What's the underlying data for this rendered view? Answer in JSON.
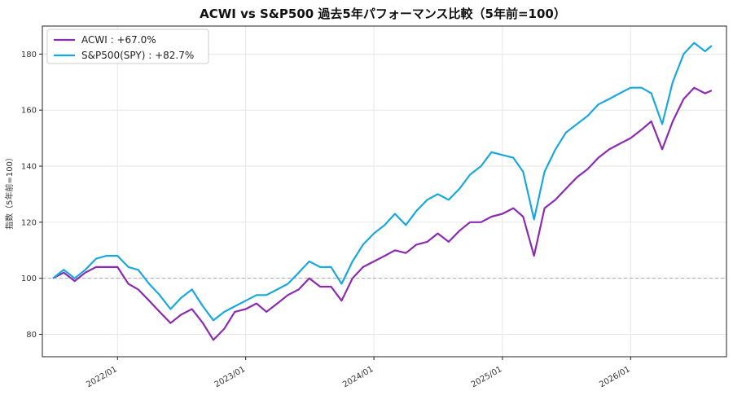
{
  "chart_data": {
    "type": "line",
    "title": "ACWI vs S&P500 過去5年パフォーマンス比較（5年前=100）",
    "ylabel": "指数（5年前=100）",
    "xlabel": "",
    "ylim": [
      72,
      190
    ],
    "xlim": [
      "2021-06-01",
      "2026-10-01"
    ],
    "yticks": [
      80,
      100,
      120,
      140,
      160,
      180
    ],
    "xticks": [
      "2022/01",
      "2023/01",
      "2024/01",
      "2025/01",
      "2026/01"
    ],
    "baseline": 100,
    "grid": true,
    "legend_position": "top-left",
    "series": [
      {
        "name": "ACWI : +67.0%",
        "color": "#8b2bb0",
        "points": [
          [
            "2021-07-01",
            100
          ],
          [
            "2021-08-01",
            102
          ],
          [
            "2021-09-01",
            99
          ],
          [
            "2021-10-01",
            102
          ],
          [
            "2021-11-01",
            104
          ],
          [
            "2021-12-01",
            104
          ],
          [
            "2022-01-01",
            104
          ],
          [
            "2022-02-01",
            98
          ],
          [
            "2022-03-01",
            96
          ],
          [
            "2022-04-01",
            92
          ],
          [
            "2022-05-01",
            88
          ],
          [
            "2022-06-01",
            84
          ],
          [
            "2022-07-01",
            87
          ],
          [
            "2022-08-01",
            89
          ],
          [
            "2022-09-01",
            84
          ],
          [
            "2022-10-01",
            78
          ],
          [
            "2022-11-01",
            82
          ],
          [
            "2022-12-01",
            88
          ],
          [
            "2023-01-01",
            89
          ],
          [
            "2023-02-01",
            91
          ],
          [
            "2023-03-01",
            88
          ],
          [
            "2023-04-01",
            91
          ],
          [
            "2023-05-01",
            94
          ],
          [
            "2023-06-01",
            96
          ],
          [
            "2023-07-01",
            100
          ],
          [
            "2023-08-01",
            97
          ],
          [
            "2023-09-01",
            97
          ],
          [
            "2023-10-01",
            92
          ],
          [
            "2023-11-01",
            100
          ],
          [
            "2023-12-01",
            104
          ],
          [
            "2024-01-01",
            106
          ],
          [
            "2024-02-01",
            108
          ],
          [
            "2024-03-01",
            110
          ],
          [
            "2024-04-01",
            109
          ],
          [
            "2024-05-01",
            112
          ],
          [
            "2024-06-01",
            113
          ],
          [
            "2024-07-01",
            116
          ],
          [
            "2024-08-01",
            113
          ],
          [
            "2024-09-01",
            117
          ],
          [
            "2024-10-01",
            120
          ],
          [
            "2024-11-01",
            120
          ],
          [
            "2024-12-01",
            122
          ],
          [
            "2025-01-01",
            123
          ],
          [
            "2025-02-01",
            125
          ],
          [
            "2025-03-01",
            122
          ],
          [
            "2025-04-01",
            108
          ],
          [
            "2025-05-01",
            125
          ],
          [
            "2025-06-01",
            128
          ],
          [
            "2025-07-01",
            132
          ],
          [
            "2025-08-01",
            136
          ],
          [
            "2025-09-01",
            139
          ],
          [
            "2025-10-01",
            143
          ],
          [
            "2025-11-01",
            146
          ],
          [
            "2025-12-01",
            148
          ],
          [
            "2026-01-01",
            150
          ],
          [
            "2026-02-01",
            153
          ],
          [
            "2026-03-01",
            156
          ],
          [
            "2026-04-01",
            146
          ],
          [
            "2026-05-01",
            156
          ],
          [
            "2026-06-01",
            164
          ],
          [
            "2026-07-01",
            168
          ],
          [
            "2026-08-01",
            166
          ],
          [
            "2026-08-20",
            167
          ]
        ]
      },
      {
        "name": "S&P500(SPY) : +82.7%",
        "color": "#1aa7e0",
        "points": [
          [
            "2021-07-01",
            100
          ],
          [
            "2021-08-01",
            103
          ],
          [
            "2021-09-01",
            100
          ],
          [
            "2021-10-01",
            103
          ],
          [
            "2021-11-01",
            107
          ],
          [
            "2021-12-01",
            108
          ],
          [
            "2022-01-01",
            108
          ],
          [
            "2022-02-01",
            104
          ],
          [
            "2022-03-01",
            103
          ],
          [
            "2022-04-01",
            98
          ],
          [
            "2022-05-01",
            94
          ],
          [
            "2022-06-01",
            89
          ],
          [
            "2022-07-01",
            93
          ],
          [
            "2022-08-01",
            96
          ],
          [
            "2022-09-01",
            90
          ],
          [
            "2022-10-01",
            85
          ],
          [
            "2022-11-01",
            88
          ],
          [
            "2022-12-01",
            90
          ],
          [
            "2023-01-01",
            92
          ],
          [
            "2023-02-01",
            94
          ],
          [
            "2023-03-01",
            94
          ],
          [
            "2023-04-01",
            96
          ],
          [
            "2023-05-01",
            98
          ],
          [
            "2023-06-01",
            102
          ],
          [
            "2023-07-01",
            106
          ],
          [
            "2023-08-01",
            104
          ],
          [
            "2023-09-01",
            104
          ],
          [
            "2023-10-01",
            98
          ],
          [
            "2023-11-01",
            106
          ],
          [
            "2023-12-01",
            112
          ],
          [
            "2024-01-01",
            116
          ],
          [
            "2024-02-01",
            119
          ],
          [
            "2024-03-01",
            123
          ],
          [
            "2024-04-01",
            119
          ],
          [
            "2024-05-01",
            124
          ],
          [
            "2024-06-01",
            128
          ],
          [
            "2024-07-01",
            130
          ],
          [
            "2024-08-01",
            128
          ],
          [
            "2024-09-01",
            132
          ],
          [
            "2024-10-01",
            137
          ],
          [
            "2024-11-01",
            140
          ],
          [
            "2024-12-01",
            145
          ],
          [
            "2025-01-01",
            144
          ],
          [
            "2025-02-01",
            143
          ],
          [
            "2025-03-01",
            138
          ],
          [
            "2025-04-01",
            121
          ],
          [
            "2025-05-01",
            138
          ],
          [
            "2025-06-01",
            146
          ],
          [
            "2025-07-01",
            152
          ],
          [
            "2025-08-01",
            155
          ],
          [
            "2025-09-01",
            158
          ],
          [
            "2025-10-01",
            162
          ],
          [
            "2025-11-01",
            164
          ],
          [
            "2025-12-01",
            166
          ],
          [
            "2026-01-01",
            168
          ],
          [
            "2026-02-01",
            168
          ],
          [
            "2026-03-01",
            166
          ],
          [
            "2026-04-01",
            155
          ],
          [
            "2026-05-01",
            170
          ],
          [
            "2026-06-01",
            180
          ],
          [
            "2026-07-01",
            184
          ],
          [
            "2026-08-01",
            181
          ],
          [
            "2026-08-20",
            183
          ]
        ]
      }
    ]
  }
}
